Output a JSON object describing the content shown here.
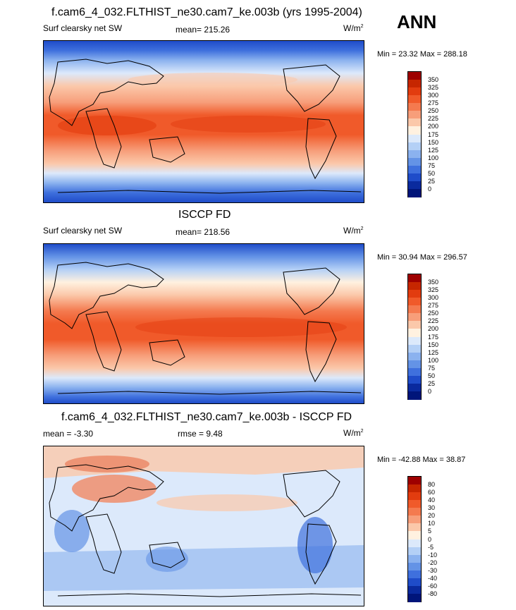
{
  "chart_data": [
    {
      "type": "heatmap",
      "title": "f.cam6_4_032.FLTHIST_ne30.cam7_ke.003b (yrs 1995-2004)",
      "left_label": "Surf clearsky net SW",
      "stat_label": "mean= 215.26",
      "units": "W/m",
      "units_sup": "2",
      "minmax": "Min =  23.32 Max = 288.18",
      "colorbar_levels": [
        "350",
        "325",
        "300",
        "275",
        "250",
        "225",
        "200",
        "175",
        "150",
        "125",
        "100",
        "75",
        "50",
        "25",
        "0"
      ],
      "colorbar_colors": [
        "#9e0000",
        "#c62600",
        "#e23c0f",
        "#f05a2a",
        "#f47a4f",
        "#f79e7a",
        "#fbc8aa",
        "#fff1e0",
        "#dce9fb",
        "#b4d0f6",
        "#8bb2ef",
        "#6493e6",
        "#3f70dd",
        "#1f4cc9",
        "#0a2a9e",
        "#00157a"
      ],
      "grid": false
    },
    {
      "type": "heatmap",
      "title": "ISCCP FD",
      "left_label": "Surf clearsky net SW",
      "stat_label": "mean= 218.56",
      "units": "W/m",
      "units_sup": "2",
      "minmax": "Min =  30.94 Max = 296.57",
      "colorbar_levels": [
        "350",
        "325",
        "300",
        "275",
        "250",
        "225",
        "200",
        "175",
        "150",
        "125",
        "100",
        "75",
        "50",
        "25",
        "0"
      ],
      "colorbar_colors": [
        "#9e0000",
        "#c62600",
        "#e23c0f",
        "#f05a2a",
        "#f47a4f",
        "#f79e7a",
        "#fbc8aa",
        "#fff1e0",
        "#dce9fb",
        "#b4d0f6",
        "#8bb2ef",
        "#6493e6",
        "#3f70dd",
        "#1f4cc9",
        "#0a2a9e",
        "#00157a"
      ],
      "grid": false
    },
    {
      "type": "heatmap",
      "title": "f.cam6_4_032.FLTHIST_ne30.cam7_ke.003b - ISCCP FD",
      "left_label": "mean =  -3.30",
      "stat_label": "rmse =   9.48",
      "units": "W/m",
      "units_sup": "2",
      "minmax": "Min = -42.88 Max =  38.87",
      "colorbar_levels": [
        "80",
        "60",
        "40",
        "30",
        "20",
        "10",
        "5",
        "0",
        "-5",
        "-10",
        "-20",
        "-30",
        "-40",
        "-60",
        "-80"
      ],
      "colorbar_colors": [
        "#9e0000",
        "#c62600",
        "#e23c0f",
        "#f05a2a",
        "#f47a4f",
        "#f79e7a",
        "#fbc8aa",
        "#fff1e0",
        "#dce9fb",
        "#b4d0f6",
        "#8bb2ef",
        "#6493e6",
        "#3f70dd",
        "#1f4cc9",
        "#0a2a9e",
        "#00157a"
      ],
      "grid": false
    }
  ],
  "season": "ANN"
}
